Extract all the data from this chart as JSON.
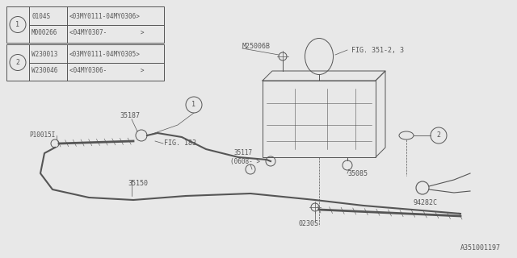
{
  "bg_color": "#e8e8e8",
  "line_color": "#555555",
  "diagram_id": "A351001197",
  "table1": {
    "rows": [
      [
        "0104S",
        "<03MY0111-04MY0306>"
      ],
      [
        "M000266",
        "<04MY0307-         >"
      ]
    ]
  },
  "table2": {
    "rows": [
      [
        "W230013",
        "<03MY0111-04MY0305>"
      ],
      [
        "W230046",
        "<04MY0306-         >"
      ]
    ]
  }
}
